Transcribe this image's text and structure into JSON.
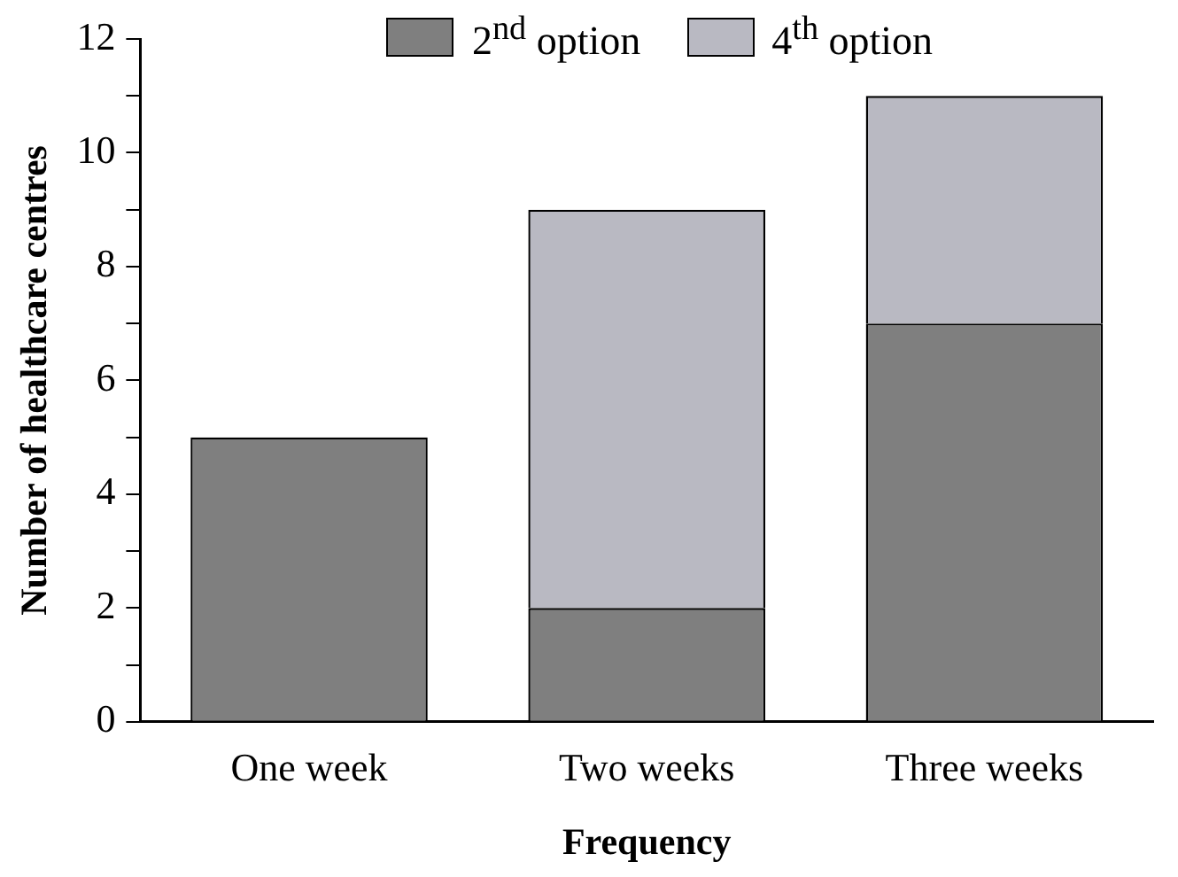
{
  "chart_data": {
    "type": "bar",
    "xlabel": "Frequency",
    "ylabel": "Number of healthcare centres",
    "categories": [
      "One week",
      "Two weeks",
      "Three weeks"
    ],
    "series": [
      {
        "name": "2$^{nd}$ option",
        "color": "#7f7f7f",
        "values": [
          5,
          2,
          7
        ]
      },
      {
        "name": "4$^{th}$ option",
        "color": "#b9b9c2",
        "values": [
          null,
          7,
          4
        ]
      }
    ],
    "stacked": true,
    "ylim": [
      0,
      12
    ],
    "yticks": [
      0,
      {
        "value": 1,
        "label": null
      },
      2,
      {
        "value": 3,
        "label": null
      },
      4,
      {
        "value": 5,
        "label": null
      },
      6,
      {
        "value": 7,
        "label": null
      },
      8,
      {
        "value": 9,
        "label": null
      },
      10,
      {
        "value": 11,
        "label": null
      },
      12
    ],
    "grid": false,
    "legend": "top"
  }
}
